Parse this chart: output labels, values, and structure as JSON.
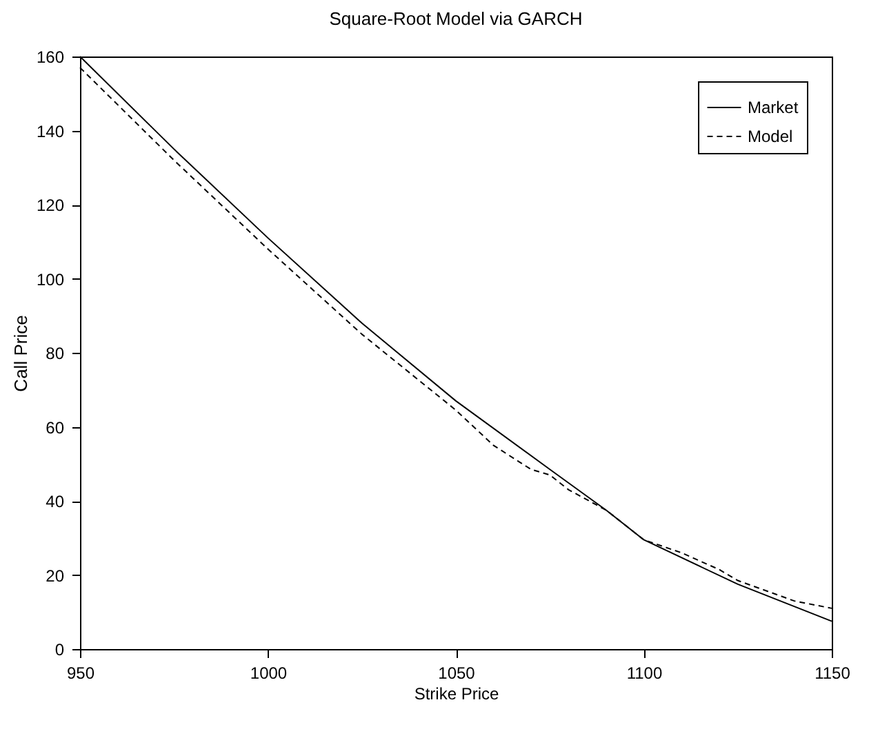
{
  "chart_data": {
    "type": "line",
    "title": "Square-Root Model via GARCH",
    "xlabel": "Strike Price",
    "ylabel": "Call Price",
    "xlim": [
      950,
      1150
    ],
    "xticks": [
      950,
      1000,
      1050,
      1100,
      1150
    ],
    "ylim": [
      0,
      160
    ],
    "yticks": [
      0,
      20,
      40,
      60,
      80,
      100,
      120,
      140,
      160
    ],
    "grid": false,
    "legend": "top right",
    "marker": "none",
    "series": [
      {
        "name": "Market",
        "color": "#000000",
        "line_style": "solid",
        "x": [
          950,
          975,
          1000,
          1025,
          1050,
          1075,
          1090,
          1100,
          1125,
          1150
        ],
        "values": [
          160,
          135,
          111,
          88,
          67,
          48.5,
          37.5,
          29.5,
          17.5,
          7.5
        ]
      },
      {
        "name": "Model",
        "color": "#000000",
        "line_style": "dashed",
        "x": [
          950,
          975,
          1000,
          1025,
          1050,
          1060,
          1070,
          1075,
          1080,
          1090,
          1100,
          1110,
          1120,
          1125,
          1140,
          1150
        ],
        "values": [
          157,
          132,
          108,
          85,
          64.5,
          55,
          48.5,
          47,
          43,
          37.5,
          29.5,
          26,
          21.5,
          18.5,
          13,
          11
        ]
      }
    ]
  }
}
